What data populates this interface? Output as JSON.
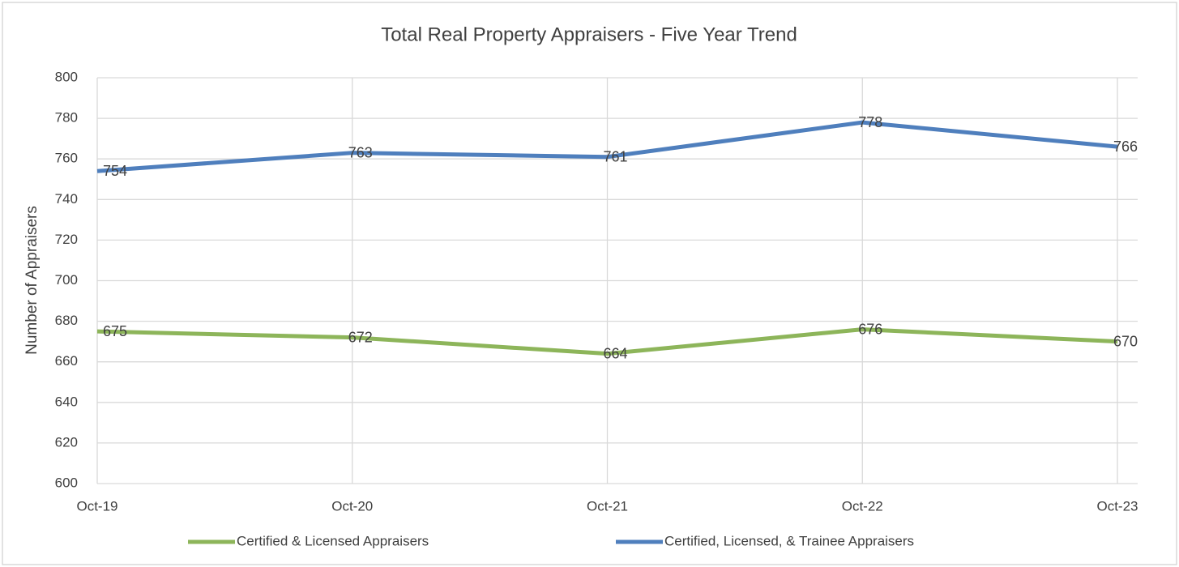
{
  "chart_data": {
    "type": "line",
    "title": "Total Real Property Appraisers - Five Year Trend",
    "y_label": "Number of Appraisers",
    "categories": [
      "Oct-19",
      "Oct-20",
      "Oct-21",
      "Oct-22",
      "Oct-23"
    ],
    "series": [
      {
        "name": "Certified & Licensed Appraisers",
        "color": "#8db55a",
        "values": [
          675,
          672,
          664,
          676,
          670
        ]
      },
      {
        "name": "Certified, Licensed, & Trainee Appraisers",
        "color": "#4f7fbd",
        "values": [
          754,
          763,
          761,
          778,
          766
        ]
      }
    ],
    "ylim": [
      600,
      800
    ],
    "yticks": [
      600,
      620,
      640,
      660,
      680,
      700,
      720,
      740,
      760,
      780,
      800
    ],
    "grid": true,
    "legend": "bottom",
    "data_labels": true
  }
}
